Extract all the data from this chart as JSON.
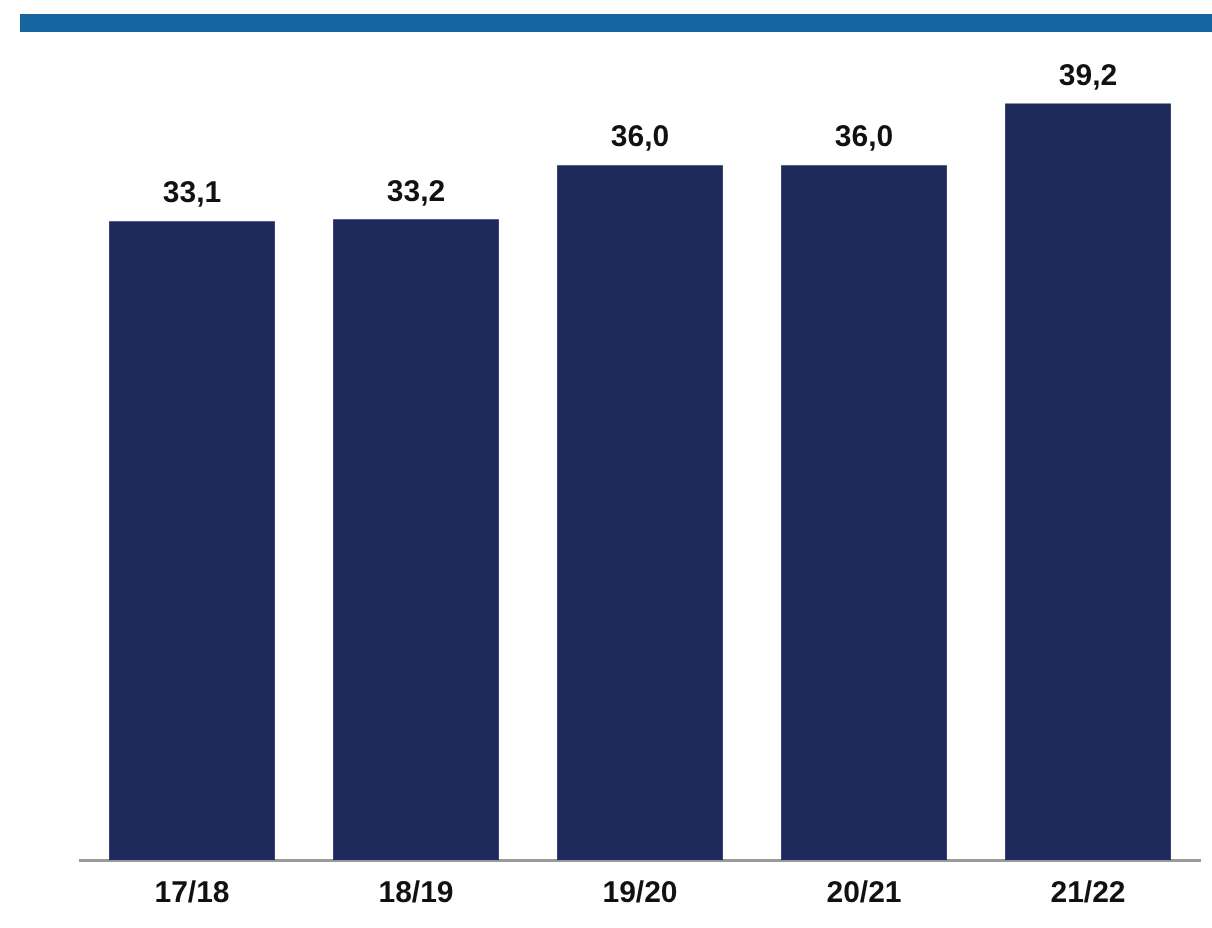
{
  "chart_data": {
    "type": "bar",
    "categories": [
      "17/18",
      "18/19",
      "19/20",
      "20/21",
      "21/22"
    ],
    "values": [
      33.1,
      33.2,
      36.0,
      36.0,
      39.2
    ],
    "value_labels": [
      "33,1",
      "33,2",
      "36,0",
      "36,0",
      "39,2"
    ],
    "color": "#1f2a5c",
    "grid": false,
    "legend": false
  }
}
